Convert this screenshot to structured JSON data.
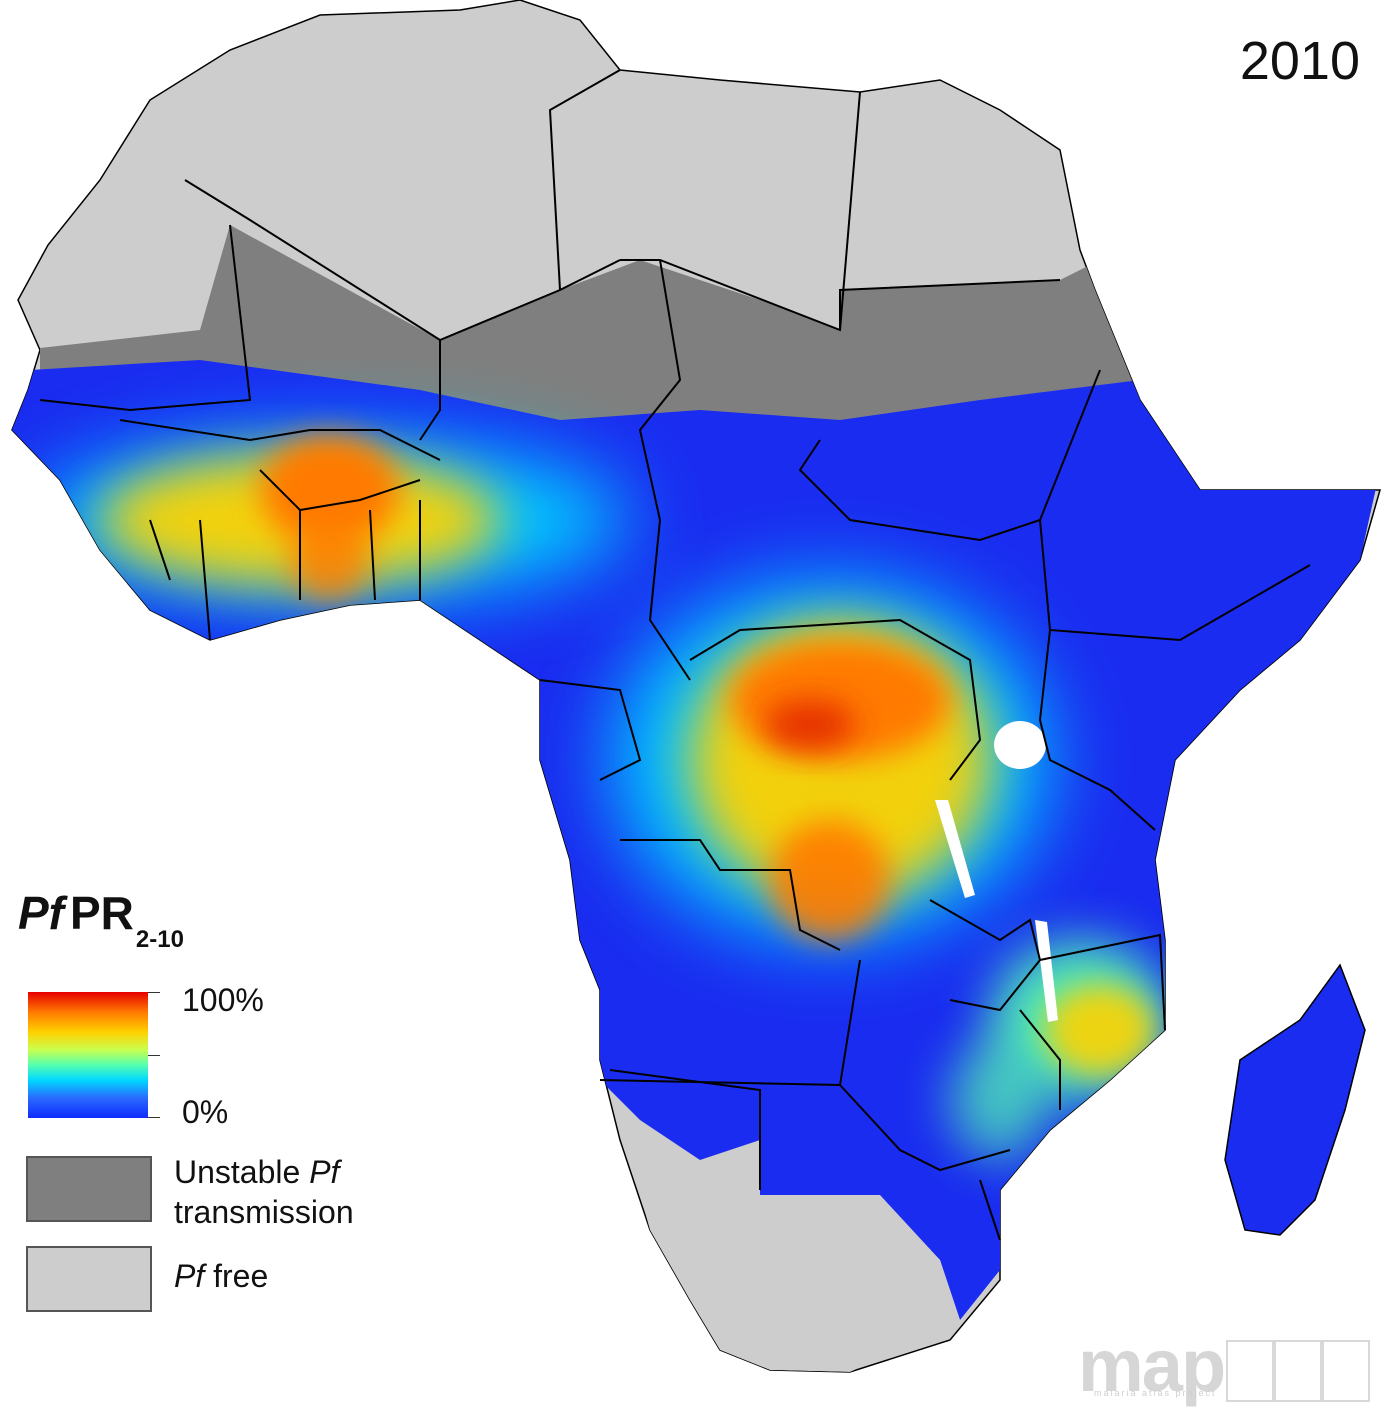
{
  "map": {
    "year": "2010",
    "legend": {
      "title_main": "Pf",
      "title_rest": "PR",
      "title_sub": "2-10",
      "ramp_max": "100%",
      "ramp_min": "0%",
      "ramp_colors": [
        "#e60000",
        "#ff7a00",
        "#ffd200",
        "#c8ff50",
        "#55ffb0",
        "#00d8ff",
        "#2a6bff",
        "#0f2bff"
      ],
      "unstable": {
        "italic": "Pf",
        "prefix": "Unstable ",
        "line2": "transmission",
        "color": "#7f7f7f"
      },
      "free": {
        "italic": "Pf",
        "suffix": " free",
        "color": "#cdcdcd"
      }
    },
    "logo": {
      "text": "map",
      "tagline": "malaria atlas project"
    },
    "colors": {
      "ocean": "#ffffff",
      "border": "#000000",
      "low": "#1a2cf0",
      "high": "#e65000"
    }
  }
}
